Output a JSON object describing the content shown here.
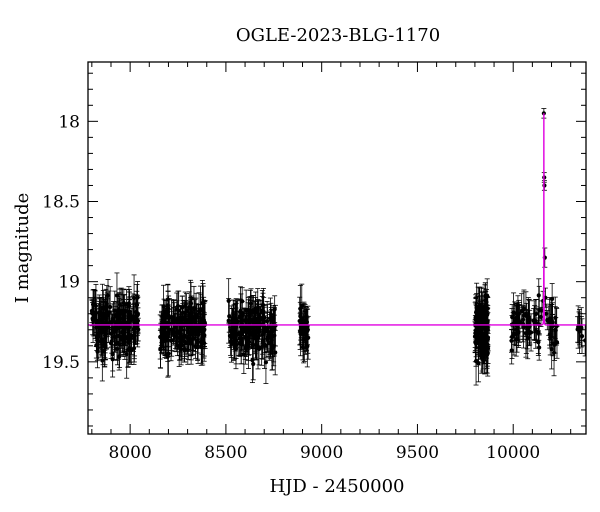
{
  "chart_data": {
    "type": "scatter",
    "title": "OGLE-2023-BLG-1170",
    "xlabel": "HJD - 2450000",
    "ylabel": "I magnitude",
    "xlim": [
      7780,
      10380
    ],
    "ylim": [
      19.95,
      17.63
    ],
    "y_inverted": true,
    "grid": false,
    "legend": "none",
    "x_ticks": [
      8000,
      8500,
      9000,
      9500,
      10000
    ],
    "x_tick_labels": [
      "8000",
      "8500",
      "9000",
      "9500",
      "10000"
    ],
    "y_ticks": [
      18,
      18.5,
      19,
      19.5
    ],
    "y_tick_labels": [
      "18",
      "18.5",
      "19",
      "19.5"
    ],
    "x_minor_step": 100,
    "y_minor_step": 0.1,
    "baseline_magnitude": 19.27,
    "observing_seasons": [
      {
        "start": 7800,
        "end": 8045,
        "mean": 19.28,
        "scatter": 0.08,
        "n": 180
      },
      {
        "start": 8155,
        "end": 8395,
        "mean": 19.28,
        "scatter": 0.07,
        "n": 180
      },
      {
        "start": 8510,
        "end": 8760,
        "mean": 19.29,
        "scatter": 0.08,
        "n": 170
      },
      {
        "start": 8885,
        "end": 8930,
        "mean": 19.27,
        "scatter": 0.07,
        "n": 35
      },
      {
        "start": 9800,
        "end": 9870,
        "mean": 19.3,
        "scatter": 0.1,
        "n": 110
      },
      {
        "start": 9990,
        "end": 10140,
        "mean": 19.28,
        "scatter": 0.07,
        "n": 60
      },
      {
        "start": 10175,
        "end": 10230,
        "mean": 19.3,
        "scatter": 0.07,
        "n": 22
      },
      {
        "start": 10335,
        "end": 10380,
        "mean": 19.26,
        "scatter": 0.07,
        "n": 10
      }
    ],
    "event_points": [
      {
        "x": 10160,
        "y": 17.95
      },
      {
        "x": 10162,
        "y": 18.35
      },
      {
        "x": 10163,
        "y": 18.4
      },
      {
        "x": 10165,
        "y": 18.85
      },
      {
        "x": 10150,
        "y": 19.18
      },
      {
        "x": 10156,
        "y": 19.12
      },
      {
        "x": 10168,
        "y": 19.1
      },
      {
        "x": 10172,
        "y": 19.2
      },
      {
        "x": 10145,
        "y": 19.22
      },
      {
        "x": 10178,
        "y": 19.24
      }
    ],
    "model": {
      "t0": 10160,
      "peak_magnitude": 17.95,
      "tE": 2.3,
      "u0": 0.045
    },
    "colors": {
      "points": "#000000",
      "model": "#e000e0",
      "axes": "#000000"
    }
  }
}
